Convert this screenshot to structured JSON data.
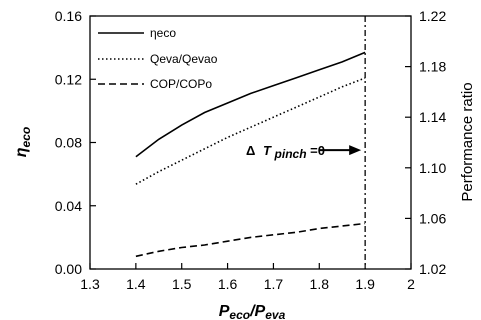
{
  "chart_data": {
    "type": "line",
    "title": "",
    "xlabel": {
      "main": "P",
      "main_sub": "eco",
      "slash": "/",
      "den": "P",
      "den_sub": "eva"
    },
    "ylabel_left": {
      "main": "η",
      "sub": "eco"
    },
    "ylabel_right": "Performance ratio",
    "xlim": [
      1.3,
      2.0
    ],
    "ylim_left": [
      0.0,
      0.16
    ],
    "ylim_right": [
      1.02,
      1.22
    ],
    "x_ticks": [
      "1.3",
      "1.4",
      "1.5",
      "1.6",
      "1.7",
      "1.8",
      "1.9",
      "2"
    ],
    "x_tick_values": [
      1.3,
      1.4,
      1.5,
      1.6,
      1.7,
      1.8,
      1.9,
      2.0
    ],
    "y_left_ticks": [
      "0.00",
      "0.04",
      "0.08",
      "0.12",
      "0.16"
    ],
    "y_left_tick_values": [
      0.0,
      0.04,
      0.08,
      0.12,
      0.16
    ],
    "y_right_ticks": [
      "1.02",
      "1.06",
      "1.10",
      "1.14",
      "1.18",
      "1.22"
    ],
    "y_right_tick_values": [
      1.02,
      1.06,
      1.1,
      1.14,
      1.18,
      1.22
    ],
    "grid": false,
    "legend_position": "top-left",
    "series": [
      {
        "name": "ηeco",
        "axis": "left",
        "style": "solid",
        "x": [
          1.4,
          1.45,
          1.5,
          1.55,
          1.6,
          1.65,
          1.7,
          1.75,
          1.8,
          1.85,
          1.9
        ],
        "y": [
          0.071,
          0.082,
          0.091,
          0.099,
          0.105,
          0.111,
          0.116,
          0.121,
          0.126,
          0.131,
          0.137
        ]
      },
      {
        "name": "Qeva/Qevao",
        "axis": "right",
        "style": "dotted",
        "x": [
          1.4,
          1.45,
          1.5,
          1.55,
          1.6,
          1.65,
          1.7,
          1.75,
          1.8,
          1.85,
          1.9
        ],
        "y": [
          1.087,
          1.097,
          1.106,
          1.115,
          1.124,
          1.132,
          1.14,
          1.148,
          1.156,
          1.164,
          1.171
        ]
      },
      {
        "name": "COP/COPo",
        "axis": "right",
        "style": "dashed",
        "x": [
          1.4,
          1.45,
          1.5,
          1.55,
          1.6,
          1.65,
          1.7,
          1.75,
          1.8,
          1.85,
          1.9
        ],
        "y": [
          1.03,
          1.034,
          1.037,
          1.039,
          1.042,
          1.045,
          1.047,
          1.049,
          1.052,
          1.054,
          1.056
        ]
      }
    ],
    "vline": {
      "x": 1.9,
      "style": "dash-dot"
    },
    "annotation": {
      "delta": "Δ",
      "t": "T",
      "sub": "pinch",
      "eq": "=0",
      "arrow_target_x": 1.9,
      "y_right": 1.114
    }
  }
}
